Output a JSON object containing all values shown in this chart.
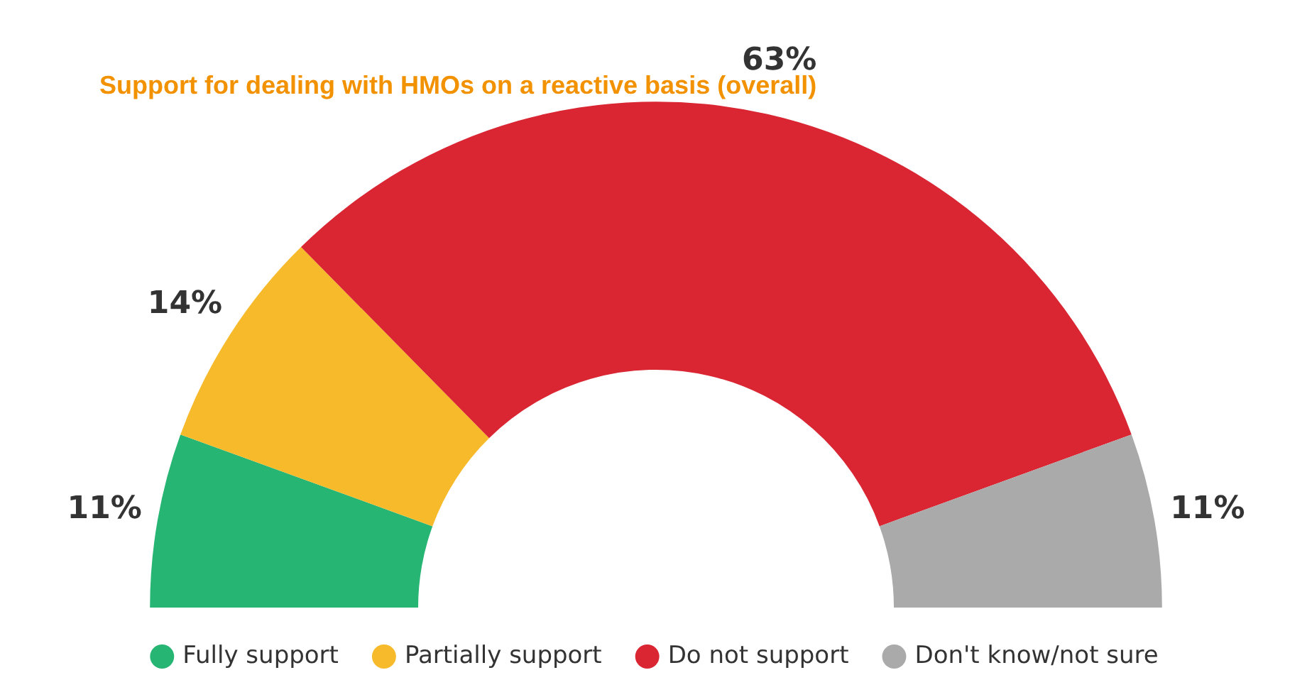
{
  "chart_data": {
    "type": "donut",
    "title": "Support for dealing with HMOs on a reactive basis (overall)",
    "categories": [
      "Fully support",
      "Partially support",
      "Do not support",
      "Don't know/not sure"
    ],
    "values": [
      11,
      14,
      63,
      11
    ],
    "colors": [
      "#27b574",
      "#f7ba2b",
      "#d92632",
      "#aaaaaa"
    ],
    "value_labels": [
      "11%",
      "14%",
      "63%",
      "11%"
    ],
    "legend": "bottom"
  }
}
